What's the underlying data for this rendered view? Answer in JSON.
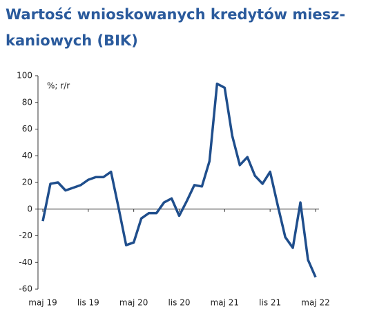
{
  "chart_data": {
    "type": "line",
    "title": [
      "Wartość wnioskowanych kredytów miesz-",
      "kaniowych (BIK)"
    ],
    "unit_label": "%; r/r",
    "categories": [
      "maj 19",
      null,
      null,
      null,
      null,
      null,
      "lis 19",
      null,
      null,
      null,
      null,
      null,
      "maj 20",
      null,
      null,
      null,
      null,
      null,
      "lis 20",
      null,
      null,
      null,
      null,
      null,
      "maj 21",
      null,
      null,
      null,
      null,
      null,
      "lis 21",
      null,
      null,
      null,
      null,
      null,
      "maj 22"
    ],
    "series": [
      {
        "name": "Wartość wnioskowanych kredytów",
        "color": "#1f4e8c",
        "values": [
          -9,
          19,
          20,
          14,
          16,
          18,
          22,
          24,
          24,
          28,
          1,
          -27,
          -25,
          -7,
          -3,
          -3,
          5,
          8,
          -5,
          6,
          18,
          17,
          36,
          94,
          91,
          55,
          33,
          39,
          25,
          19,
          28,
          3,
          -21,
          -29,
          5,
          -38,
          -51
        ]
      }
    ],
    "ylim": [
      -60,
      100
    ],
    "yticks": [
      -60,
      -40,
      -20,
      0,
      20,
      40,
      60,
      80,
      100
    ],
    "grid": false
  }
}
